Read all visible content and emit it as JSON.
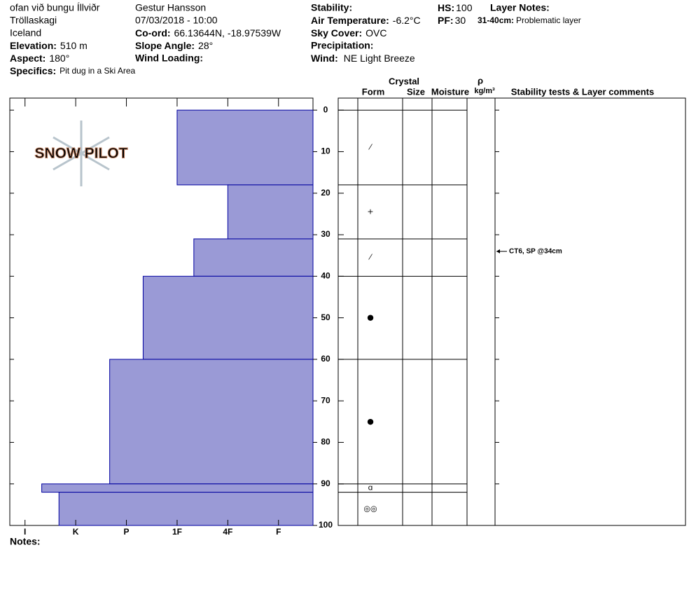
{
  "header": {
    "location": "ofan við bungu Íllviðr",
    "region": "Tröllaskagi",
    "country": "Iceland",
    "elevation": {
      "label": "Elevation:",
      "value": "510 m"
    },
    "aspect": {
      "label": "Aspect:",
      "value": "180°"
    },
    "specifics": {
      "label": "Specifics:",
      "value": "Pit dug in a Ski Area"
    },
    "observer": "Gestur Hansson",
    "datetime": "07/03/2018 - 10:00",
    "coord": {
      "label": "Co-ord:",
      "value": "66.13644N, -18.97539W"
    },
    "slope_angle": {
      "label": "Slope Angle:",
      "value": "28°"
    },
    "wind_loading": {
      "label": "Wind Loading:"
    },
    "stability": {
      "label": "Stability:"
    },
    "air_temperature": {
      "label": "Air Temperature:",
      "value": "-6.2°C"
    },
    "sky_cover": {
      "label": "Sky Cover:",
      "value": "OVC"
    },
    "precipitation": {
      "label": "Precipitation:"
    },
    "wind": {
      "label": "Wind:",
      "value": "NE Light Breeze"
    },
    "hs": {
      "label": "HS:",
      "value": "100"
    },
    "pf": {
      "label": "PF:",
      "value": "30"
    },
    "layer_notes": {
      "label": "Layer Notes:",
      "range": "31-40cm:",
      "text": "Problematic layer"
    }
  },
  "logo": "SNOW PILOT",
  "notes_label": "Notes:",
  "table_headers": {
    "crystal": "Crystal",
    "form": "Form",
    "size": "Size",
    "moisture": "Moisture",
    "rho": "ρ",
    "density_unit": "kg/m³",
    "comments": "Stability tests & Layer comments"
  },
  "profile": {
    "ylim": [
      -2.9,
      100
    ],
    "xlim": [
      -0.3,
      5.68
    ],
    "depth_ticks": [
      0,
      10,
      20,
      30,
      40,
      50,
      60,
      70,
      80,
      90,
      100
    ],
    "hardness_ticks": [
      {
        "value": 0,
        "label": "I"
      },
      {
        "value": 1,
        "label": "K"
      },
      {
        "value": 2,
        "label": "P"
      },
      {
        "value": 3,
        "label": "1F"
      },
      {
        "value": 4,
        "label": "4F"
      },
      {
        "value": 5,
        "label": "F"
      }
    ],
    "color": "#9a9ad6",
    "layers": [
      {
        "top": 0,
        "bottom": 18,
        "hardness": 3,
        "form": "⁄"
      },
      {
        "top": 18,
        "bottom": 31,
        "hardness": 4,
        "form": "+"
      },
      {
        "top": 31,
        "bottom": 40,
        "hardness": 3.33,
        "form": "⁄"
      },
      {
        "top": 40,
        "bottom": 60,
        "hardness": 2.33,
        "form": "●"
      },
      {
        "top": 60,
        "bottom": 90,
        "hardness": 1.67,
        "form": "●"
      },
      {
        "top": 90,
        "bottom": 92,
        "hardness": 0.33,
        "form": "ɑ"
      },
      {
        "top": 92,
        "bottom": 100,
        "hardness": 0.67,
        "form": "◎◎"
      }
    ],
    "tests": [
      {
        "depth": 34,
        "text": "CT6, SP @34cm"
      }
    ]
  }
}
